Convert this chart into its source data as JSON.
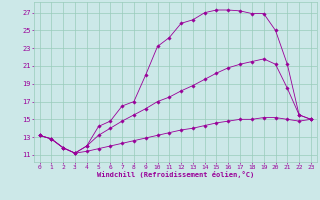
{
  "xlabel": "Windchill (Refroidissement éolien,°C)",
  "bg_color": "#cce8e8",
  "line_color": "#990099",
  "grid_color": "#99ccbb",
  "x_ticks": [
    0,
    1,
    2,
    3,
    4,
    5,
    6,
    7,
    8,
    9,
    10,
    11,
    12,
    13,
    14,
    15,
    16,
    17,
    18,
    19,
    20,
    21,
    22,
    23
  ],
  "y_ticks": [
    11,
    13,
    15,
    17,
    19,
    21,
    23,
    25,
    27
  ],
  "ylim": [
    10.2,
    28.2
  ],
  "xlim": [
    -0.5,
    23.5
  ],
  "series": [
    {
      "x": [
        0,
        1,
        2,
        3,
        4,
        5,
        6,
        7,
        8,
        9,
        10,
        11,
        12,
        13,
        14,
        15,
        16,
        17,
        18,
        19,
        20,
        21,
        22,
        23
      ],
      "y": [
        13.2,
        12.8,
        11.8,
        11.2,
        12.0,
        14.2,
        14.8,
        16.5,
        17.0,
        20.0,
        23.2,
        24.2,
        25.8,
        26.2,
        27.0,
        27.3,
        27.3,
        27.2,
        26.9,
        26.9,
        25.0,
        21.2,
        15.5,
        15.0
      ]
    },
    {
      "x": [
        0,
        1,
        2,
        3,
        4,
        5,
        6,
        7,
        8,
        9,
        10,
        11,
        12,
        13,
        14,
        15,
        16,
        17,
        18,
        19,
        20,
        21,
        22,
        23
      ],
      "y": [
        13.2,
        12.8,
        11.8,
        11.2,
        12.0,
        13.2,
        14.0,
        14.8,
        15.5,
        16.2,
        17.0,
        17.5,
        18.2,
        18.8,
        19.5,
        20.2,
        20.8,
        21.2,
        21.5,
        21.8,
        21.2,
        18.5,
        15.5,
        15.0
      ]
    },
    {
      "x": [
        0,
        1,
        2,
        3,
        4,
        5,
        6,
        7,
        8,
        9,
        10,
        11,
        12,
        13,
        14,
        15,
        16,
        17,
        18,
        19,
        20,
        21,
        22,
        23
      ],
      "y": [
        13.2,
        12.8,
        11.8,
        11.2,
        11.4,
        11.7,
        12.0,
        12.3,
        12.6,
        12.9,
        13.2,
        13.5,
        13.8,
        14.0,
        14.3,
        14.6,
        14.8,
        15.0,
        15.0,
        15.2,
        15.2,
        15.0,
        14.8,
        15.0
      ]
    }
  ]
}
